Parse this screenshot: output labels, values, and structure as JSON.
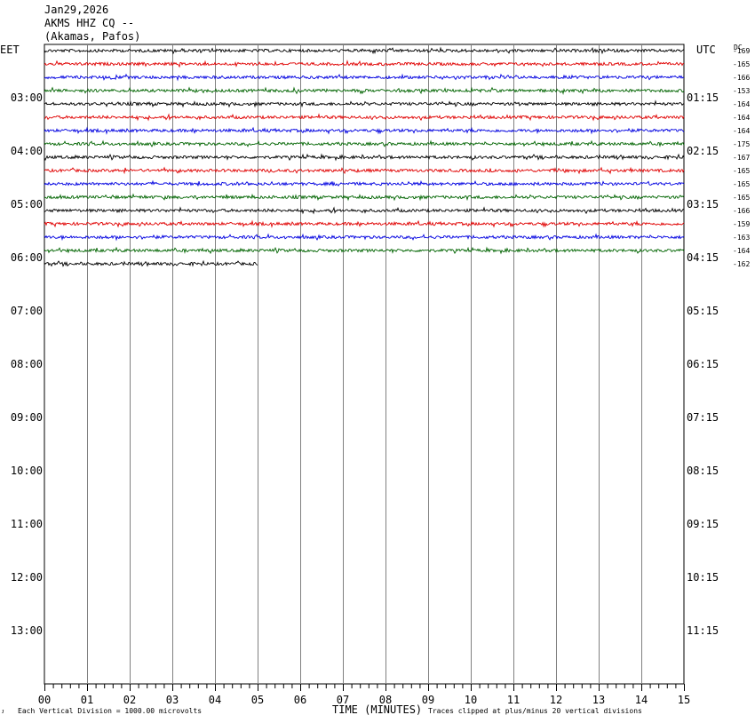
{
  "header": {
    "date": "Jan29,2026",
    "station": "AKMS HHZ CQ --",
    "location": "(Akamas, Pafos)"
  },
  "left_tz": "EET",
  "right_tz": "UTC",
  "dc_label": "DC",
  "footer": {
    "x_axis_label": "TIME (MINUTES)",
    "scale_note": "Each Vertical Division = 1000.00 microvolts",
    "clip_note": "Traces clipped at plus/minus 20 vertical divisions"
  },
  "colors": {
    "trace_cycle": [
      "#000000",
      "#e00000",
      "#0000e0",
      "#006400"
    ],
    "grid": "#808080",
    "background": "#ffffff"
  },
  "chart_data": {
    "type": "line",
    "subtype": "helicorder",
    "x_range_minutes": [
      0,
      15
    ],
    "x_ticks": [
      "00",
      "01",
      "02",
      "03",
      "04",
      "05",
      "06",
      "07",
      "08",
      "09",
      "10",
      "11",
      "12",
      "13",
      "14",
      "15"
    ],
    "y_range_hours_eet": [
      2,
      14
    ],
    "left_hour_labels": [
      "03:00",
      "04:00",
      "05:00",
      "06:00",
      "07:00",
      "08:00",
      "09:00",
      "10:00",
      "11:00",
      "12:00",
      "13:00"
    ],
    "right_hour_labels": [
      "01:15",
      "02:15",
      "03:15",
      "04:15",
      "05:15",
      "06:15",
      "07:15",
      "08:15",
      "09:15",
      "10:15",
      "11:15"
    ],
    "lines_per_hour": 4,
    "dc_offsets": [
      "-169",
      "-165",
      "-166",
      "-153",
      "-164",
      "-164",
      "-164",
      "-175",
      "-167",
      "-165",
      "-165",
      "-165",
      "-166",
      "-159",
      "-163",
      "-164",
      "-162"
    ],
    "last_trace_end_minute": 5
  }
}
